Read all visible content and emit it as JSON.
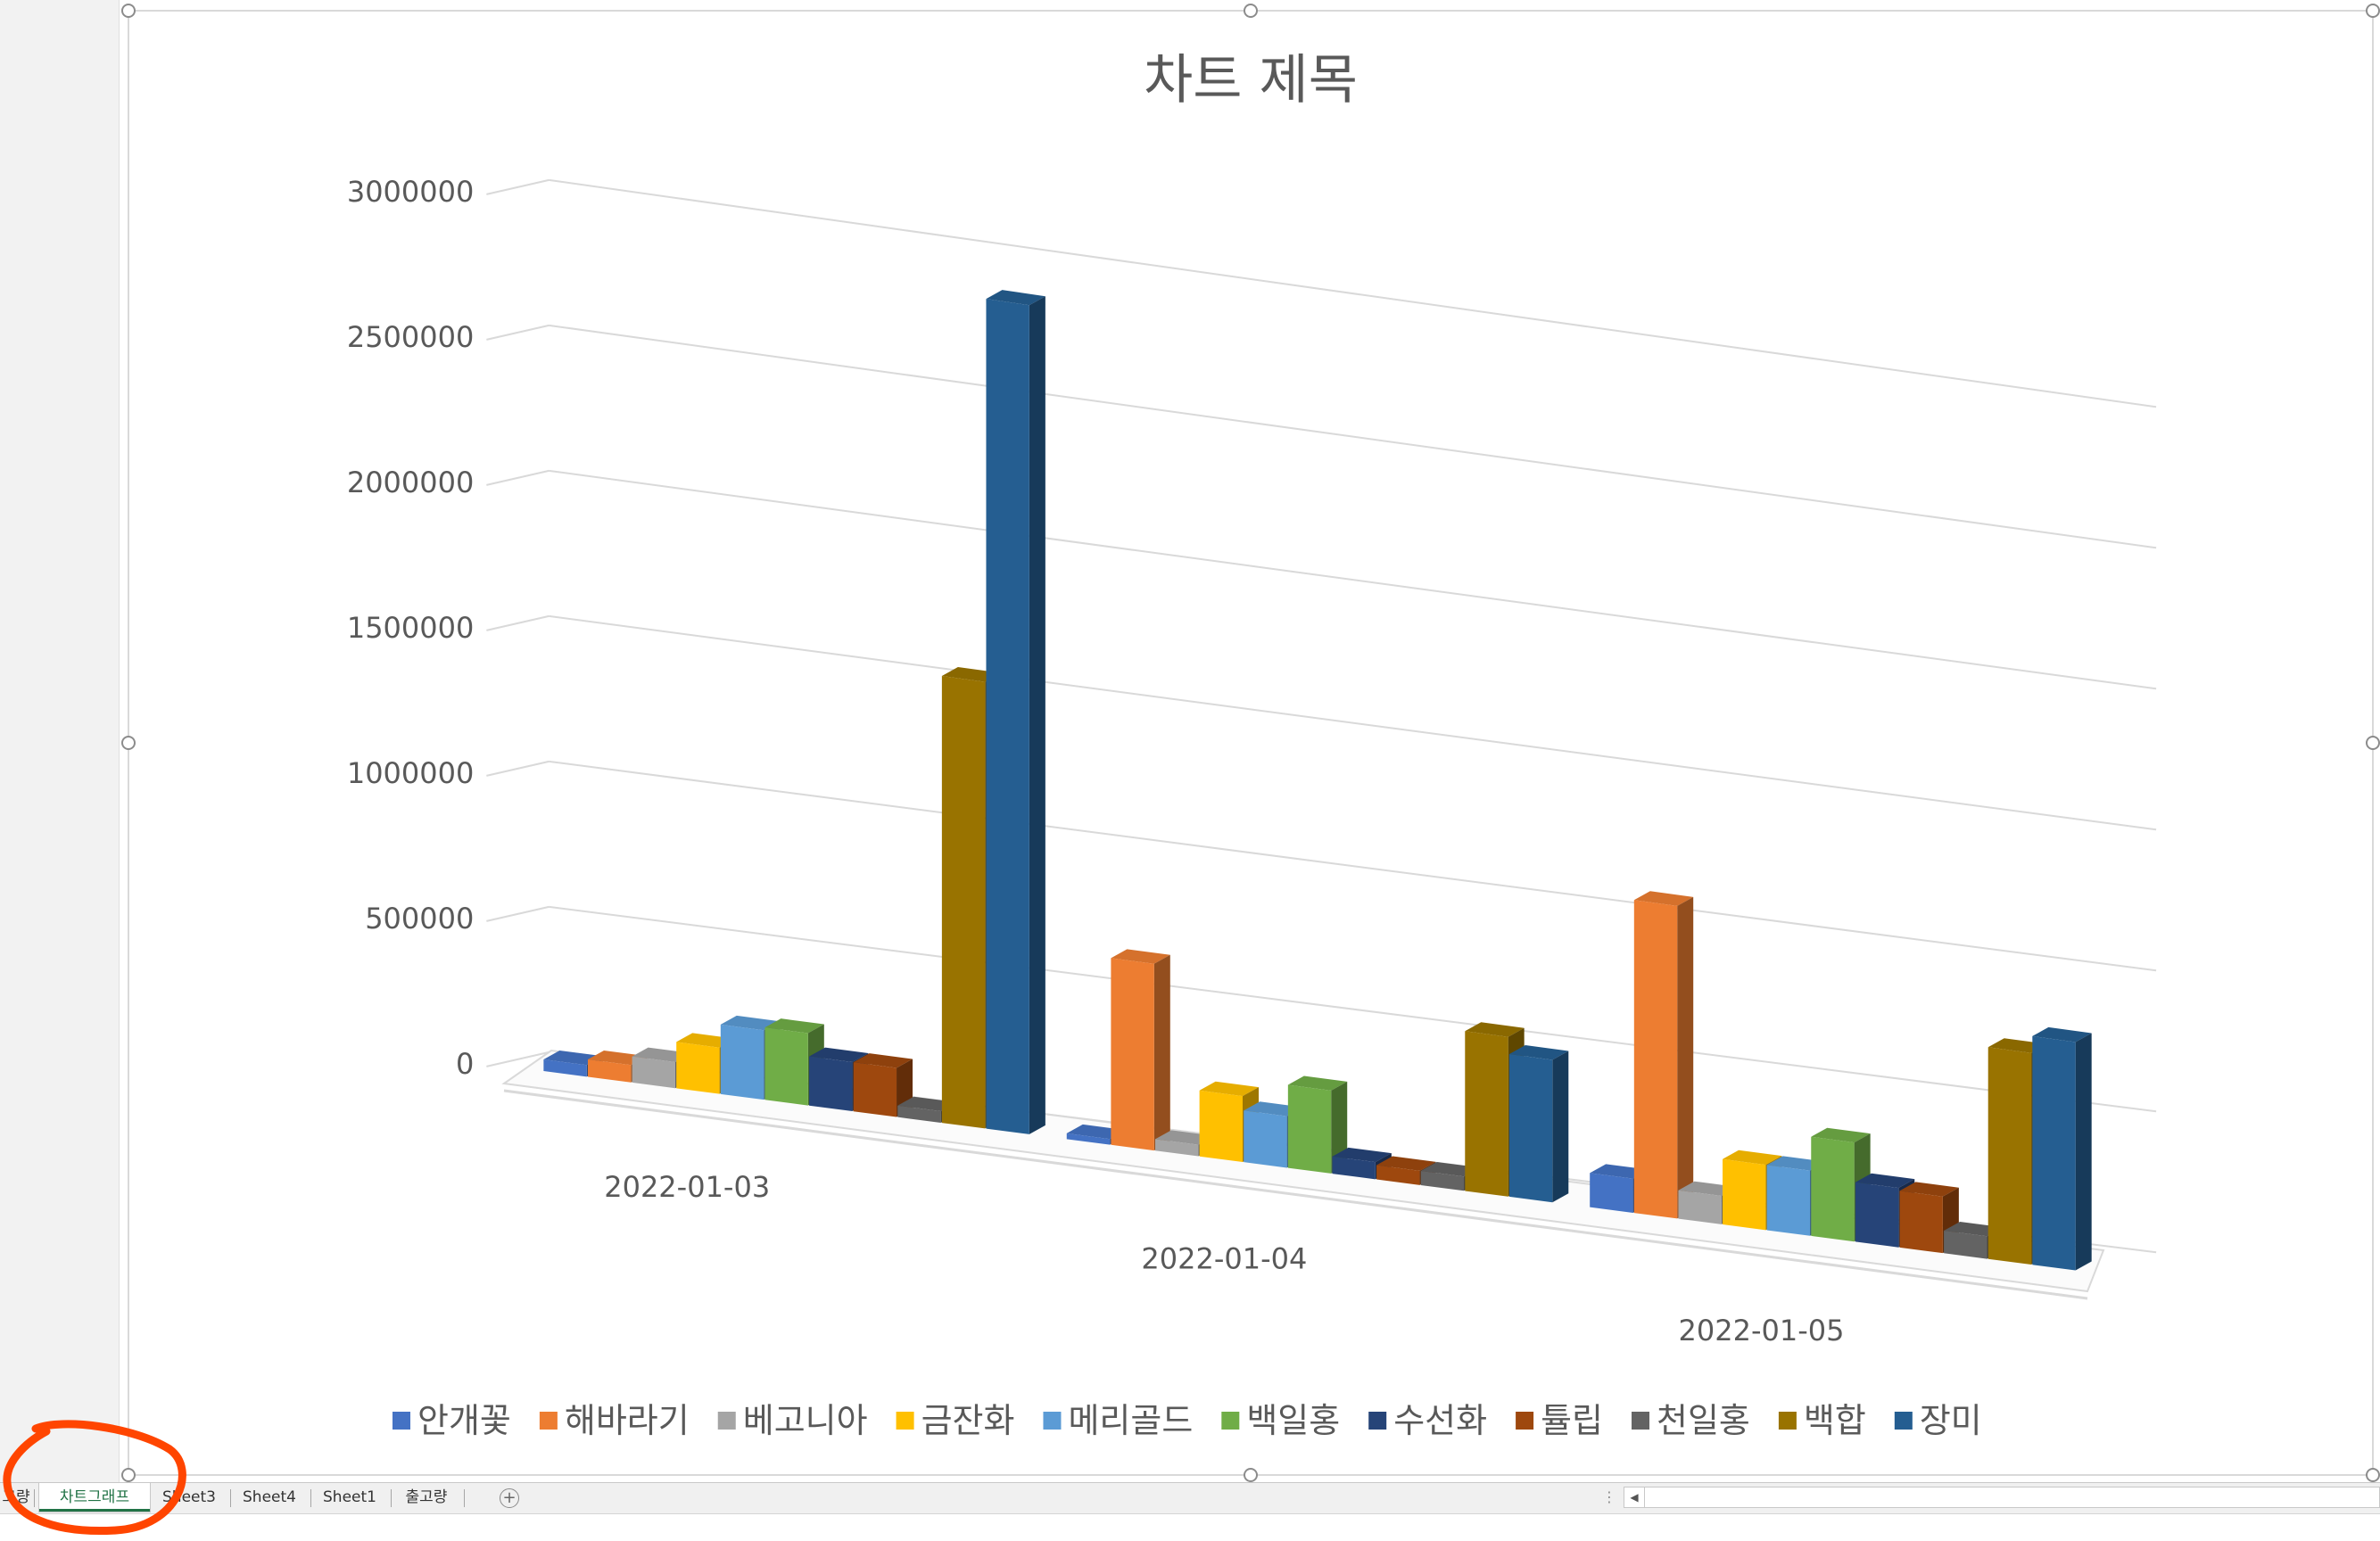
{
  "sheet_tabs": [
    {
      "label": "고량",
      "active": false
    },
    {
      "label": "차트그래프",
      "active": true
    },
    {
      "label": "Sheet3",
      "active": false
    },
    {
      "label": "Sheet4",
      "active": false
    },
    {
      "label": "Sheet1",
      "active": false
    },
    {
      "label": "출고량",
      "active": false
    }
  ],
  "add_sheet_icon": "plus-circle-icon",
  "scroll_left_icon": "triangle-left-icon",
  "annotation_color": "#ff4500",
  "chart_data": {
    "type": "bar",
    "variant": "3d-clustered-column",
    "title": "차트 제목",
    "categories": [
      "2022-01-03",
      "2022-01-04",
      "2022-01-05"
    ],
    "ylim": [
      0,
      3000000
    ],
    "yticks": [
      "3000000",
      "2500000",
      "2000000",
      "1500000",
      "1000000",
      "500000",
      "0"
    ],
    "grid": true,
    "legend_position": "bottom",
    "series": [
      {
        "name": "안개꽃",
        "color": "#4472c4",
        "values": [
          40000,
          20000,
          120000
        ]
      },
      {
        "name": "해바라기",
        "color": "#ed7d31",
        "values": [
          60000,
          650000,
          1100000
        ]
      },
      {
        "name": "베고니아",
        "color": "#a5a5a5",
        "values": [
          90000,
          40000,
          100000
        ]
      },
      {
        "name": "금잔화",
        "color": "#ffc000",
        "values": [
          160000,
          230000,
          230000
        ]
      },
      {
        "name": "메리골드",
        "color": "#5b9bd5",
        "values": [
          240000,
          180000,
          230000
        ]
      },
      {
        "name": "백일홍",
        "color": "#70ad47",
        "values": [
          250000,
          290000,
          350000
        ]
      },
      {
        "name": "수선화",
        "color": "#264478",
        "values": [
          170000,
          60000,
          210000
        ]
      },
      {
        "name": "튤립",
        "color": "#9e480e",
        "values": [
          170000,
          50000,
          200000
        ]
      },
      {
        "name": "천일홍",
        "color": "#636363",
        "values": [
          40000,
          50000,
          80000
        ]
      },
      {
        "name": "백합",
        "color": "#997300",
        "values": [
          1550000,
          560000,
          750000
        ]
      },
      {
        "name": "장미",
        "color": "#255e91",
        "values": [
          2880000,
          500000,
          810000
        ]
      }
    ]
  }
}
